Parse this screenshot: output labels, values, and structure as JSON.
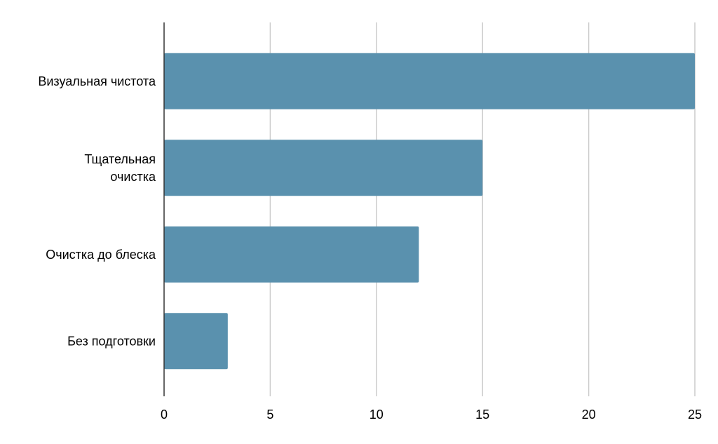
{
  "chart_data": {
    "type": "bar",
    "orientation": "horizontal",
    "categories": [
      [
        "Визуальная чистота"
      ],
      [
        "Тщательная",
        "очистка"
      ],
      [
        "Очистка до блеска"
      ],
      [
        "Без подготовки"
      ]
    ],
    "values": [
      25,
      15,
      12,
      3
    ],
    "xlim": [
      0,
      25
    ],
    "xticks": [
      0,
      5,
      10,
      15,
      20,
      25
    ],
    "grid": true,
    "bar_color": "#5a91ae",
    "title": "",
    "xlabel": "",
    "ylabel": ""
  }
}
